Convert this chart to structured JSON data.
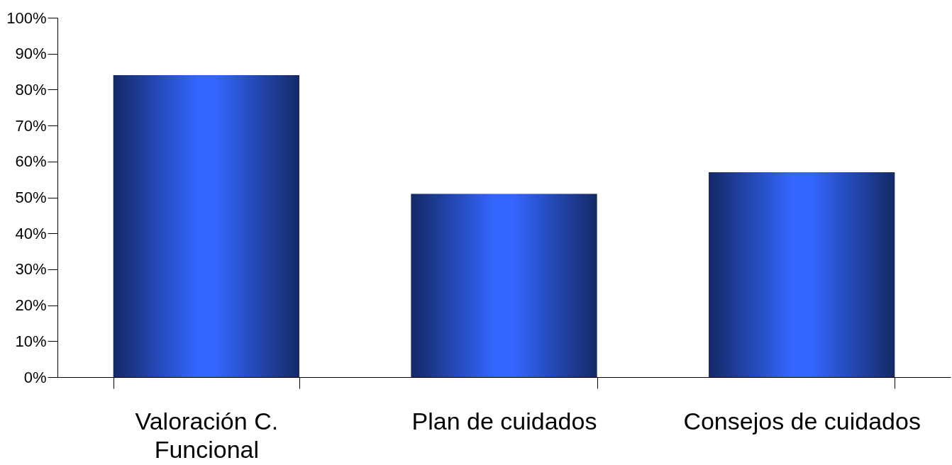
{
  "chart_data": {
    "type": "bar",
    "categories": [
      "Valoración C. Funcional",
      "Plan de cuidados",
      "Consejos de cuidados"
    ],
    "values": [
      84,
      51,
      57
    ],
    "color": "#3366ff",
    "ylim": [
      0,
      100
    ],
    "yticks": [
      {
        "value": 0,
        "label": "0%"
      },
      {
        "value": 10,
        "label": "10%"
      },
      {
        "value": 20,
        "label": "20%"
      },
      {
        "value": 30,
        "label": "30%"
      },
      {
        "value": 40,
        "label": "40%"
      },
      {
        "value": 50,
        "label": "50%"
      },
      {
        "value": 60,
        "label": "60%"
      },
      {
        "value": 70,
        "label": "70%"
      },
      {
        "value": 80,
        "label": "80%"
      },
      {
        "value": 90,
        "label": "90%"
      },
      {
        "value": 100,
        "label": "100%"
      }
    ],
    "grid": false
  }
}
